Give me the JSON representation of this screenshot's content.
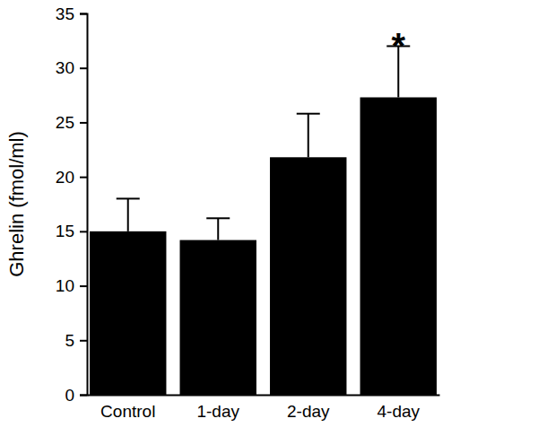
{
  "chart_data": {
    "type": "bar",
    "y_label": "Ghrelin (fmol/ml)",
    "categories": [
      "Control",
      "1-day",
      "2-day",
      "4-day"
    ],
    "values": [
      15.0,
      14.2,
      21.8,
      27.3
    ],
    "errors": [
      3.0,
      2.0,
      4.0,
      4.7
    ],
    "color": "#000000",
    "ylim": [
      0,
      35
    ],
    "yticks": [
      0,
      5,
      10,
      15,
      20,
      25,
      30,
      35
    ],
    "annotations": [
      {
        "text": "*",
        "category": "4-day"
      }
    ]
  }
}
